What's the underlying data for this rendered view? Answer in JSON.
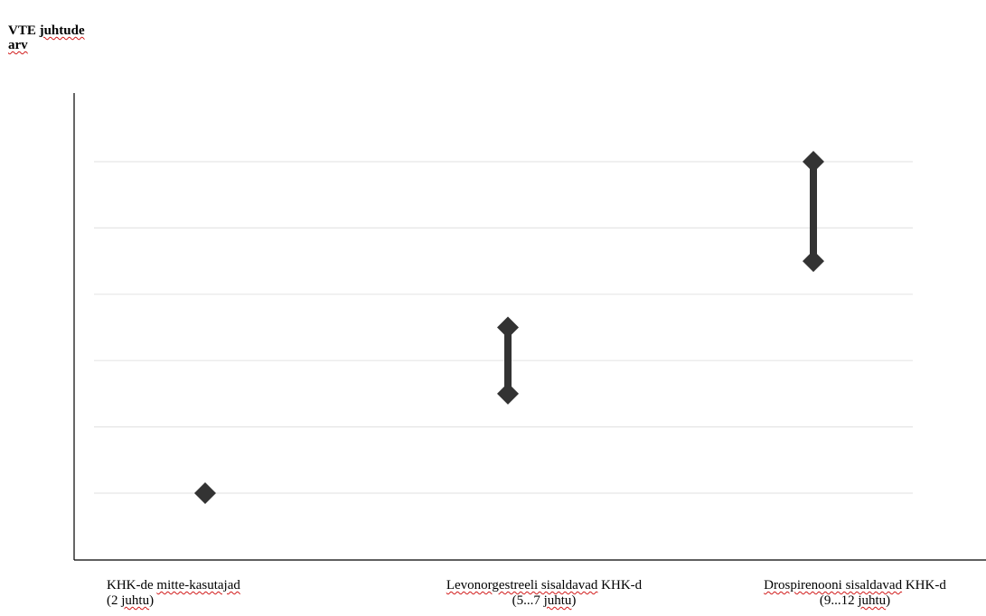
{
  "chart_data": {
    "type": "scatter",
    "ylabel_lines": [
      "VTE juhtude",
      "arv"
    ],
    "ylim": [
      1,
      13
    ],
    "grid": true,
    "categories": [
      {
        "name": "KHK-de mitte-kasutajad",
        "sub": "(2 juhtu)",
        "low": 2,
        "high": 2
      },
      {
        "name": "Levonorgestreeli sisaldavad KHK-d",
        "sub": "(5...7 juhtu)",
        "low": 5,
        "high": 7
      },
      {
        "name": "Drospirenooni sisaldavad KHK-d",
        "sub": "(9...12 juhtu)",
        "low": 9,
        "high": 12
      }
    ],
    "colors": {
      "marker": "#333333",
      "axis": "#000000",
      "grid": "#e6e6e6"
    }
  }
}
